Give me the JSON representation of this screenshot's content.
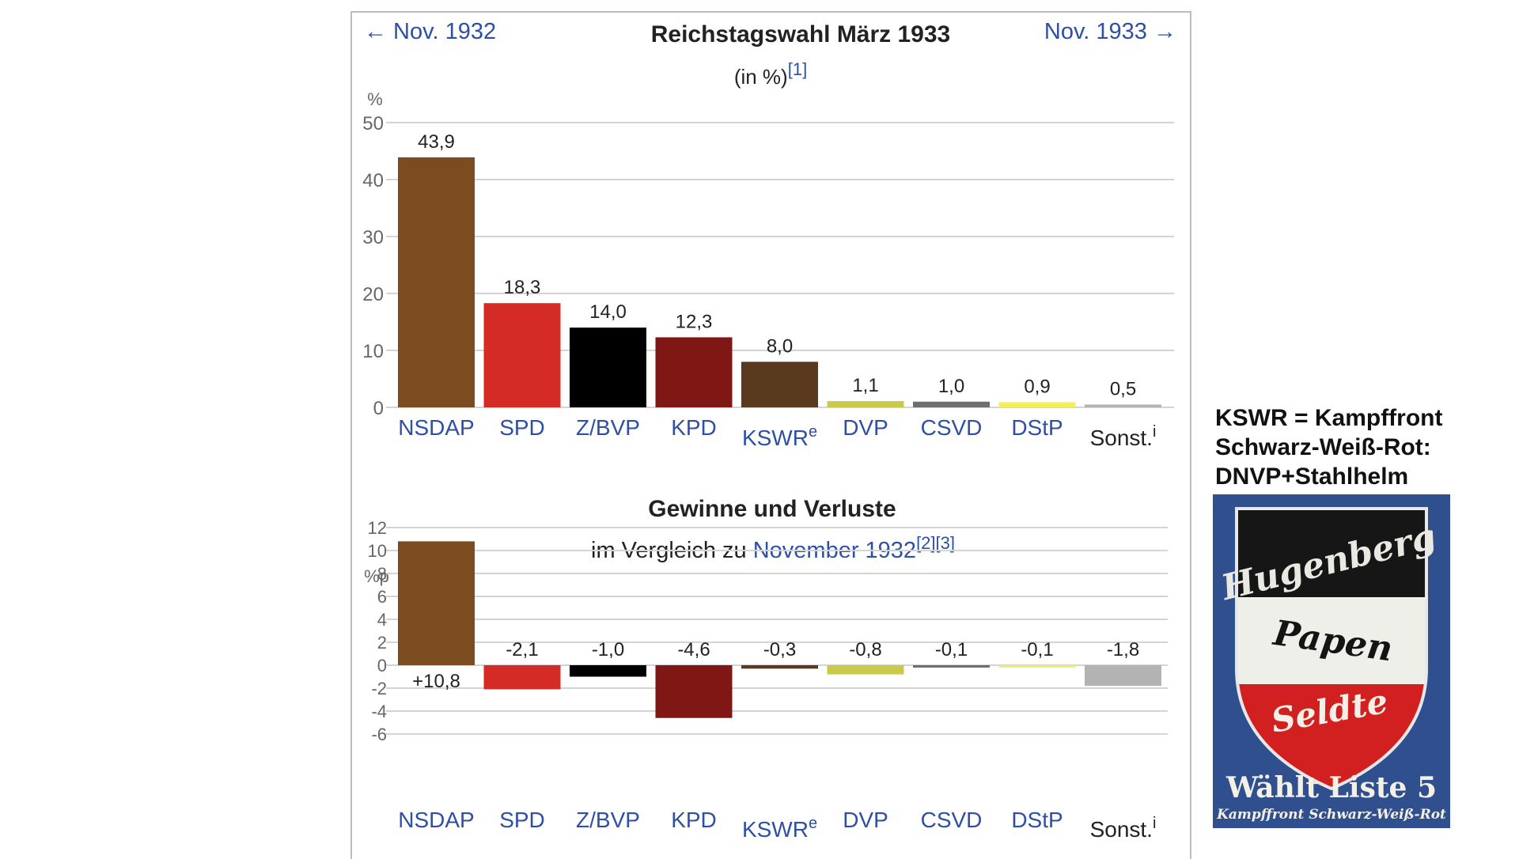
{
  "nav": {
    "prev_label": "← Nov. 1932",
    "next_label": "Nov. 1933 →"
  },
  "colors": {
    "NSDAP": "#7b4c1f",
    "SPD": "#d42b26",
    "Z/BVP": "#000000",
    "KPD": "#7f1714",
    "KSWR": "#5a3a1e",
    "DVP": "#c9c94a",
    "CSVD": "#6e6e6e",
    "DStP": "#f1ef5a",
    "Sonst": "#b3b3b3",
    "link": "#2d4fa5"
  },
  "chart_data": [
    {
      "type": "bar",
      "title": "Reichstagswahl März 1933",
      "subtitle": "(in %)",
      "subtitle_ref": "[1]",
      "ylabel": "%",
      "ylim": [
        0,
        50
      ],
      "yticks": [
        "0",
        "10",
        "20",
        "30",
        "40",
        "50"
      ],
      "grid": true,
      "categories": [
        "NSDAP",
        "SPD",
        "Z/BVP",
        "KPD",
        "KSWR",
        "DVP",
        "CSVD",
        "DStP",
        "Sonst."
      ],
      "category_superscripts": [
        "",
        "",
        "",
        "",
        "e",
        "",
        "",
        "",
        "i"
      ],
      "values": [
        43.9,
        18.3,
        14.0,
        12.3,
        8.0,
        1.1,
        1.0,
        0.9,
        0.5
      ],
      "value_labels": [
        "43,9",
        "18,3",
        "14,0",
        "12,3",
        "8,0",
        "1,1",
        "1,0",
        "0,9",
        "0,5"
      ]
    },
    {
      "type": "bar",
      "title": "Gewinne und Verluste",
      "subtitle_prefix": "im Vergleich zu ",
      "subtitle_link": "November 1932",
      "subtitle_refs": "[2][3]",
      "ylabel": "%p",
      "ylim": [
        -6,
        12
      ],
      "yticks": [
        "-6",
        "-4",
        "-2",
        "0",
        "2",
        "4",
        "6",
        "8",
        "10",
        "12"
      ],
      "grid": true,
      "categories": [
        "NSDAP",
        "SPD",
        "Z/BVP",
        "KPD",
        "KSWR",
        "DVP",
        "CSVD",
        "DStP",
        "Sonst."
      ],
      "category_superscripts": [
        "",
        "",
        "",
        "",
        "e",
        "",
        "",
        "",
        "i"
      ],
      "values": [
        10.8,
        -2.1,
        -1.0,
        -4.6,
        -0.3,
        -0.8,
        -0.1,
        -0.1,
        -1.8
      ],
      "value_labels": [
        "+10,8",
        "-2,1",
        "-1,0",
        "-4,6",
        "-0,3",
        "-0,8",
        "-0,1",
        "-0,1",
        "-1,8"
      ]
    }
  ],
  "side_note": {
    "lines": [
      "KSWR = Kampffront",
      "Schwarz-Weiß-Rot:",
      "DNVP+Stahlhelm"
    ]
  },
  "poster": {
    "names": [
      "Hugenberg",
      "Papen",
      "Seldte"
    ],
    "slogan": "Wählt Liste 5",
    "footer": "Kampffront Schwarz-Weiß-Rot"
  }
}
